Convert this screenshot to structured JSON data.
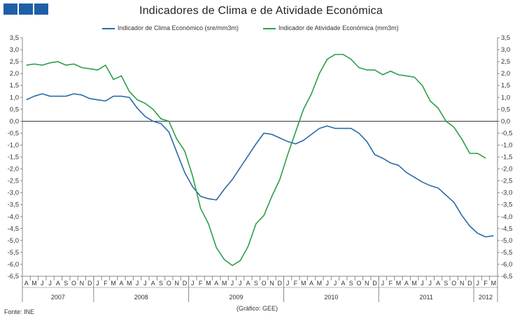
{
  "header": {
    "logo_icon": "ine-logo-icon"
  },
  "chart_data": {
    "type": "line",
    "title": "Indicadores de Clima  e de Atividade Económica",
    "xlabel": "",
    "ylabel": "",
    "ylim": [
      -6.5,
      3.5
    ],
    "yticks": [
      "3,5",
      "3,0",
      "2,5",
      "2,0",
      "1,5",
      "1,0",
      "0,5",
      "0,0",
      "-0,5",
      "-1,0",
      "-1,5",
      "-2,0",
      "-2,5",
      "-3,0",
      "-3,5",
      "-4,0",
      "-4,5",
      "-5,0",
      "-5,5",
      "-6,0",
      "-6,5"
    ],
    "x_months": [
      "A",
      "M",
      "J",
      "J",
      "A",
      "S",
      "O",
      "N",
      "D",
      "J",
      "F",
      "M",
      "A",
      "M",
      "J",
      "J",
      "A",
      "S",
      "O",
      "N",
      "D",
      "J",
      "F",
      "M",
      "A",
      "M",
      "J",
      "J",
      "A",
      "S",
      "O",
      "N",
      "D",
      "J",
      "F",
      "M",
      "A",
      "M",
      "J",
      "J",
      "A",
      "S",
      "O",
      "N",
      "D",
      "J",
      "F",
      "M",
      "A",
      "M",
      "J",
      "J",
      "A",
      "S",
      "O",
      "N",
      "D",
      "J",
      "F",
      "M"
    ],
    "years": [
      {
        "label": "2007",
        "start": 0,
        "end": 8
      },
      {
        "label": "2008",
        "start": 9,
        "end": 20
      },
      {
        "label": "2009",
        "start": 21,
        "end": 32
      },
      {
        "label": "2010",
        "start": 33,
        "end": 44
      },
      {
        "label": "2011",
        "start": 45,
        "end": 56
      },
      {
        "label": "2012",
        "start": 57,
        "end": 59
      }
    ],
    "series": [
      {
        "name": "Indicador de Clima Económico (sre/mm3m)",
        "color": "#2a6aa8",
        "values": [
          0.9,
          1.05,
          1.15,
          1.05,
          1.05,
          1.05,
          1.15,
          1.1,
          0.95,
          0.9,
          0.85,
          1.05,
          1.05,
          1.0,
          0.55,
          0.2,
          0.0,
          -0.1,
          -0.45,
          -1.3,
          -2.15,
          -2.75,
          -3.15,
          -3.25,
          -3.3,
          -2.85,
          -2.45,
          -1.95,
          -1.45,
          -0.95,
          -0.5,
          -0.55,
          -0.7,
          -0.85,
          -0.95,
          -0.8,
          -0.55,
          -0.3,
          -0.2,
          -0.3,
          -0.3,
          -0.3,
          -0.5,
          -0.85,
          -1.4,
          -1.55,
          -1.75,
          -1.85,
          -2.15,
          -2.35,
          -2.55,
          -2.7,
          -2.8,
          -3.1,
          -3.4,
          -3.95,
          -4.4,
          -4.7,
          -4.85,
          -4.8
        ]
      },
      {
        "name": "Indicador de Atividade Económica (mm3m)",
        "color": "#2aa048",
        "values": [
          2.35,
          2.4,
          2.35,
          2.45,
          2.5,
          2.35,
          2.4,
          2.25,
          2.2,
          2.15,
          2.35,
          1.75,
          1.9,
          1.25,
          0.9,
          0.75,
          0.5,
          0.1,
          0.0,
          -0.75,
          -1.25,
          -2.3,
          -3.65,
          -4.3,
          -5.3,
          -5.8,
          -6.05,
          -5.85,
          -5.25,
          -4.3,
          -3.95,
          -3.15,
          -2.45,
          -1.4,
          -0.45,
          0.5,
          1.15,
          2.0,
          2.6,
          2.8,
          2.8,
          2.6,
          2.25,
          2.15,
          2.15,
          1.95,
          2.1,
          1.95,
          1.9,
          1.85,
          1.5,
          0.85,
          0.55,
          0.0,
          -0.25,
          -0.75,
          -1.35,
          -1.35,
          -1.55,
          null
        ]
      }
    ],
    "legend_position": "top"
  },
  "footer": {
    "source": "Fonte: INE",
    "credit": "(Gráfico: GEE)"
  }
}
